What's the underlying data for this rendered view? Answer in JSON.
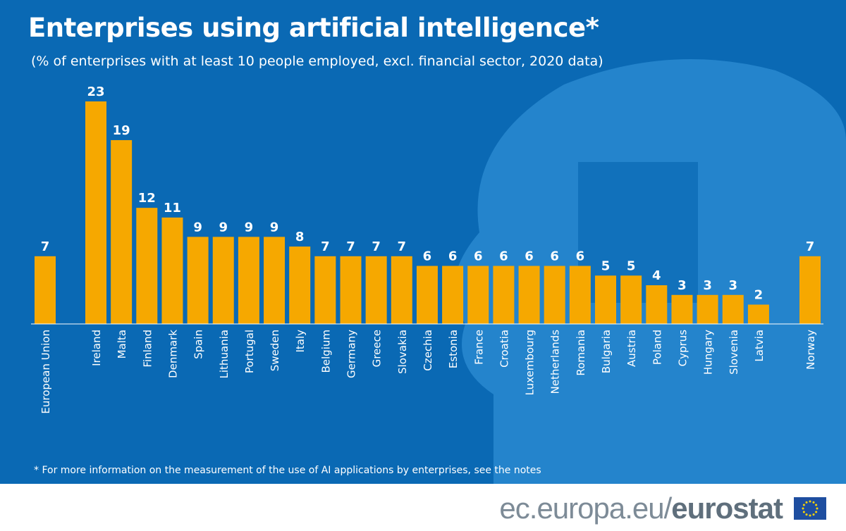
{
  "title": "Enterprises using artificial intelligence*",
  "subtitle": "(% of enterprises with at least 10 people employed, excl. financial sector, 2020 data)",
  "note": "* For more information on the measurement of the use of AI applications by enterprises, see the notes",
  "footer": {
    "domain": "ec.europa.eu/",
    "brand": "eurostat"
  },
  "colors": {
    "background": "#0a69b4",
    "bar": "#f6a800",
    "text": "#ffffff"
  },
  "chart_data": {
    "type": "bar",
    "title": "Enterprises using artificial intelligence*",
    "subtitle": "(% of enterprises with at least 10 people employed, excl. financial sector, 2020 data)",
    "categories": [
      "European Union",
      "Ireland",
      "Malta",
      "Finland",
      "Denmark",
      "Spain",
      "Lithuania",
      "Portugal",
      "Sweden",
      "Italy",
      "Belgium",
      "Germany",
      "Greece",
      "Slovakia",
      "Czechia",
      "Estonia",
      "France",
      "Croatia",
      "Luxembourg",
      "Netherlands",
      "Romania",
      "Bulgaria",
      "Austria",
      "Poland",
      "Cyprus",
      "Hungary",
      "Slovenia",
      "Latvia",
      "Norway"
    ],
    "values": [
      7,
      23,
      19,
      12,
      11,
      9,
      9,
      9,
      9,
      8,
      7,
      7,
      7,
      7,
      6,
      6,
      6,
      6,
      6,
      6,
      6,
      5,
      5,
      4,
      3,
      3,
      3,
      2,
      7
    ],
    "ylim": [
      0,
      23
    ],
    "grid": false,
    "data_labels": true
  }
}
